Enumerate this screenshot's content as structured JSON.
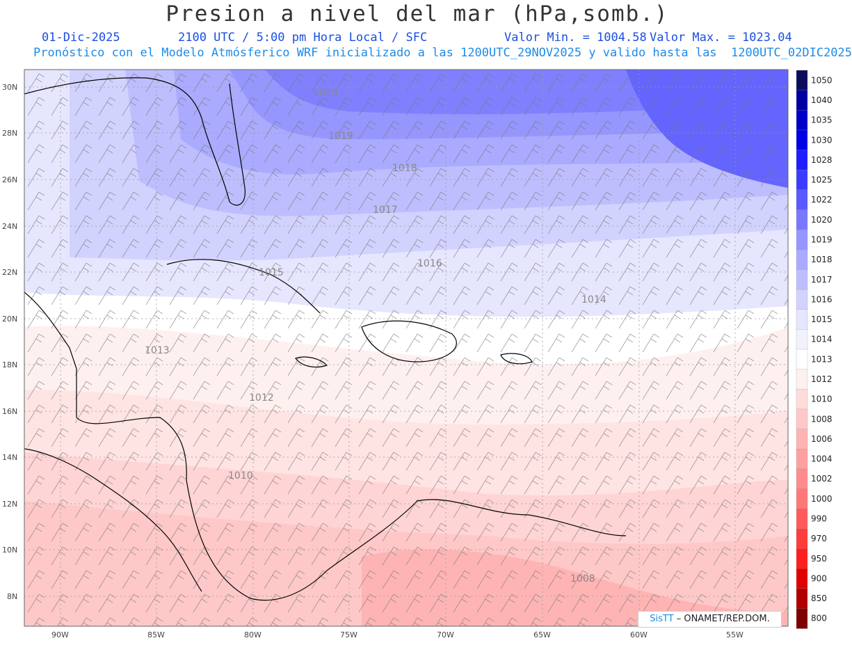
{
  "header": {
    "title": "Presion a nivel del mar (hPa,somb.)",
    "date": "01-Dic-2025",
    "time": "2100 UTC / 5:00 pm Hora Local / SFC",
    "min": "Valor Min. = 1004.58",
    "max": "Valor Max. = 1023.04",
    "subtitle": "Pronóstico con el Modelo Atmósferico WRF inicializado a las 1200UTC_29NOV2025 y valido hasta las  1200UTC_02DIC2025"
  },
  "map": {
    "lat_labels": [
      "30N",
      "28N",
      "26N",
      "24N",
      "22N",
      "20N",
      "18N",
      "16N",
      "14N",
      "12N",
      "10N",
      "8N"
    ],
    "lon_labels": [
      "90W",
      "85W",
      "80W",
      "75W",
      "70W",
      "65W",
      "60W",
      "55W"
    ],
    "contours": [
      "1020",
      "1019",
      "1018",
      "1017",
      "1016",
      "1015",
      "1014",
      "1013",
      "1012",
      "1010",
      "1008"
    ]
  },
  "colorbar": {
    "labels": [
      "1050",
      "1040",
      "1035",
      "1030",
      "1028",
      "1025",
      "1022",
      "1020",
      "1019",
      "1018",
      "1017",
      "1016",
      "1015",
      "1014",
      "1013",
      "1012",
      "1010",
      "1008",
      "1006",
      "1004",
      "1002",
      "1000",
      "990",
      "970",
      "950",
      "900",
      "850",
      "800"
    ],
    "colors": [
      "#0d0d5c",
      "#0000a0",
      "#0000c8",
      "#0000e6",
      "#1e1eff",
      "#3c3cff",
      "#5a5aff",
      "#7878ff",
      "#9696ff",
      "#aaaaff",
      "#bebeff",
      "#d2d2ff",
      "#e6e6ff",
      "#f2f2ff",
      "#ffffff",
      "#fff0f0",
      "#ffdcdc",
      "#ffc8c8",
      "#ffb4b4",
      "#ffa0a0",
      "#ff8c8c",
      "#ff7878",
      "#ff5a5a",
      "#ff3c3c",
      "#ff1e1e",
      "#e00000",
      "#b00000",
      "#800000"
    ]
  },
  "credit": {
    "brand": "SisTT",
    "org": "– ONAMET/REP.DOM."
  }
}
